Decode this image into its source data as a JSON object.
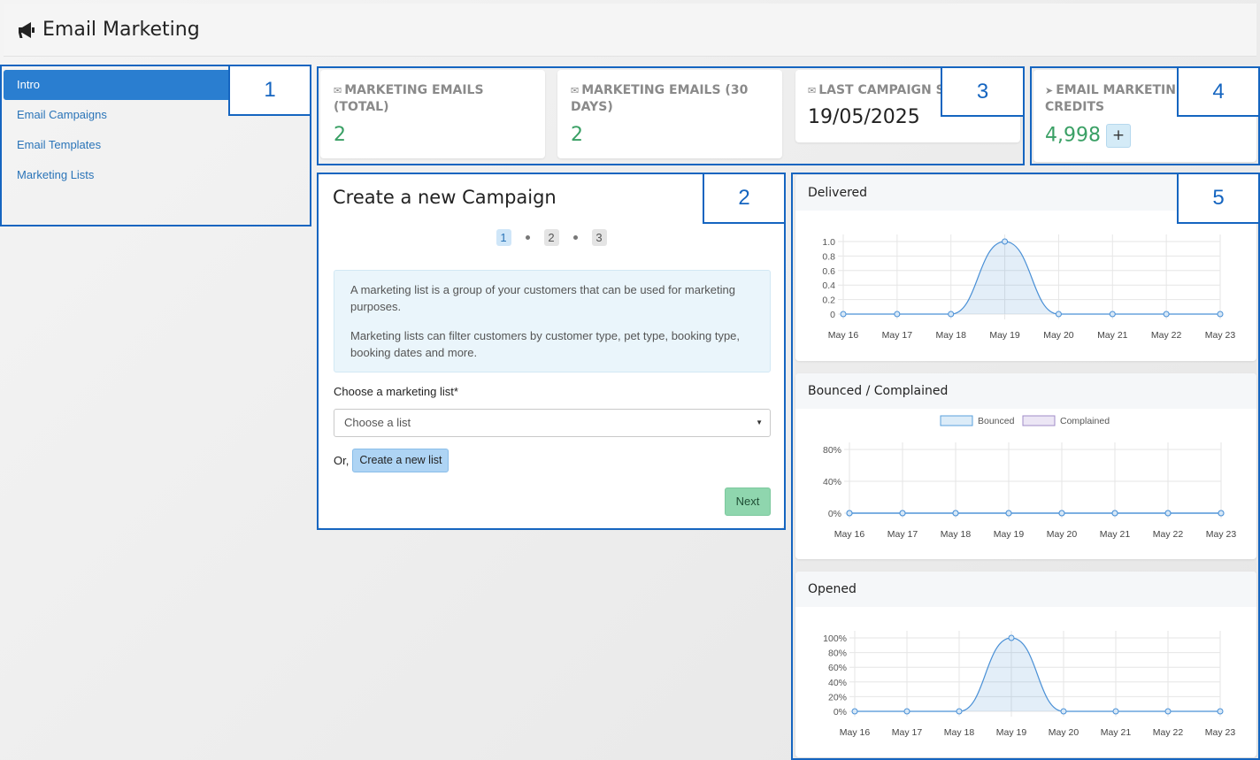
{
  "header": {
    "title": "Email Marketing",
    "icon": "megaphone-icon"
  },
  "sidebar": {
    "items": [
      {
        "label": "Intro",
        "active": true
      },
      {
        "label": "Email Campaigns",
        "active": false
      },
      {
        "label": "Email Templates",
        "active": false
      },
      {
        "label": "Marketing Lists",
        "active": false
      }
    ]
  },
  "stats": {
    "total": {
      "label": "MARKETING EMAILS (TOTAL)",
      "value": "2",
      "icon": "truck-mail-icon"
    },
    "days30": {
      "label": "MARKETING EMAILS (30 DAYS)",
      "value": "2",
      "icon": "calendar-mail-icon"
    },
    "last": {
      "label": "LAST CAMPAIGN S",
      "value": "19/05/2025",
      "icon": "envelope-icon"
    },
    "credits": {
      "label_line1": "EMAIL MARKETIN",
      "label_line2": "CREDITS",
      "value": "4,998",
      "plus_label": "+",
      "icon": "paper-plane-icon"
    }
  },
  "campaign": {
    "title": "Create a new Campaign",
    "steps": [
      "1",
      "2",
      "3"
    ],
    "info_p1": "A marketing list is a group of your customers that can be used for marketing purposes.",
    "info_p2": "Marketing lists can filter customers by customer type, pet type, booking type, booking dates and more.",
    "choose_label": "Choose a marketing list*",
    "select_placeholder": "Choose a list",
    "or_label": "Or,",
    "create_list_label": "Create a new list",
    "next_label": "Next"
  },
  "annotations": [
    "1",
    "2",
    "3",
    "4",
    "5"
  ],
  "chart_data": [
    {
      "type": "area",
      "title": "Delivered",
      "categories": [
        "May 16",
        "May 17",
        "May 18",
        "May 19",
        "May 20",
        "May 21",
        "May 22",
        "May 23"
      ],
      "series": [
        {
          "values": [
            0,
            0,
            0,
            1,
            0,
            0,
            0,
            0
          ]
        }
      ],
      "yticks": [
        "1.0",
        "0.8",
        "0.6",
        "0.4",
        "0.2",
        "0"
      ],
      "ylim": [
        0,
        1
      ],
      "grid": true
    },
    {
      "type": "area",
      "title": "Bounced / Complained",
      "categories": [
        "May 16",
        "May 17",
        "May 18",
        "May 19",
        "May 20",
        "May 21",
        "May 22",
        "May 23"
      ],
      "series": [
        {
          "name": "Bounced",
          "values": [
            0,
            0,
            0,
            0,
            0,
            0,
            0,
            0
          ]
        },
        {
          "name": "Complained",
          "values": [
            0,
            0,
            0,
            0,
            0,
            0,
            0,
            0
          ]
        }
      ],
      "yticks": [
        "80%",
        "40%",
        "0%"
      ],
      "ylim": [
        0,
        80
      ],
      "legend": "top",
      "grid": true
    },
    {
      "type": "area",
      "title": "Opened",
      "categories": [
        "May 16",
        "May 17",
        "May 18",
        "May 19",
        "May 20",
        "May 21",
        "May 22",
        "May 23"
      ],
      "series": [
        {
          "values": [
            0,
            0,
            0,
            100,
            0,
            0,
            0,
            0
          ]
        }
      ],
      "yticks": [
        "100%",
        "80%",
        "60%",
        "40%",
        "20%",
        "0%"
      ],
      "ylim": [
        0,
        100
      ],
      "grid": true
    }
  ]
}
